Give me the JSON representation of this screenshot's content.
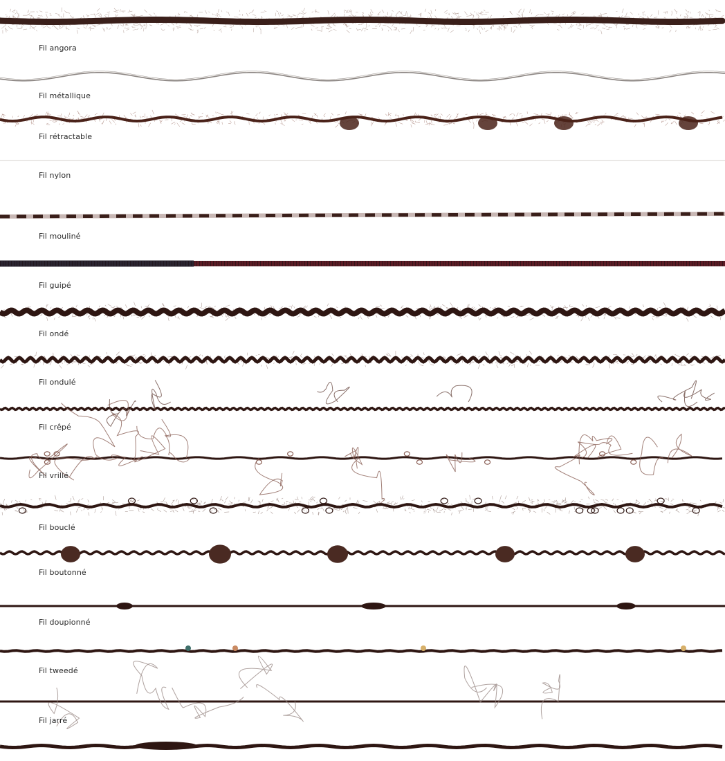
{
  "yarns": [
    {
      "label": "Fil angora",
      "style": "fuzzy-thick",
      "color": "#3a1f1a",
      "fuzz": "#8a6a5e"
    },
    {
      "label": "Fil métallique",
      "style": "metallic",
      "color": "#c9c2bd",
      "fuzz": "#8b8582"
    },
    {
      "label": "Fil rétractable",
      "style": "fuzzy-puckered",
      "color": "#4a2219",
      "fuzz": "#8c5a4c"
    },
    {
      "label": "Fil nylon",
      "style": "nylon",
      "color": "#d4d0cc",
      "fuzz": "#d4d0cc"
    },
    {
      "label": "Fil mouliné",
      "style": "twisted",
      "color": "#3a1f1a",
      "fuzz": "#c8b7b4"
    },
    {
      "label": "Fil guipé",
      "style": "wrapped",
      "color": "#5b1c25",
      "fuzz": "#2a2430"
    },
    {
      "label": "Fil ondé",
      "style": "wavy-thick",
      "color": "#2e1612",
      "fuzz": "#7a5a52"
    },
    {
      "label": "Fil ondulé",
      "style": "wavy",
      "color": "#2e1612",
      "fuzz": "#7a5a52"
    },
    {
      "label": "Fil crêpé",
      "style": "crepe",
      "color": "#2e1612",
      "fuzz": "#6a4a42"
    },
    {
      "label": "Fil vrillé",
      "style": "twisted-loops",
      "color": "#2e1612",
      "fuzz": "#8a5f55"
    },
    {
      "label": "Fil bouclé",
      "style": "boucle",
      "color": "#2e1612",
      "fuzz": "#6a4a42"
    },
    {
      "label": "Fil boutonné",
      "style": "knops",
      "color": "#2e1612",
      "fuzz": "#4a2a22"
    },
    {
      "label": "Fil doupionné",
      "style": "slub",
      "color": "#2e1612",
      "fuzz": "#4a2a22"
    },
    {
      "label": "Fil tweedé",
      "style": "tweed",
      "color": "#2e1612",
      "fuzz": "#6a4a42"
    },
    {
      "label": "Fil jarré",
      "style": "jarre",
      "color": "#2e1612",
      "fuzz": "#9a8a86"
    }
  ]
}
